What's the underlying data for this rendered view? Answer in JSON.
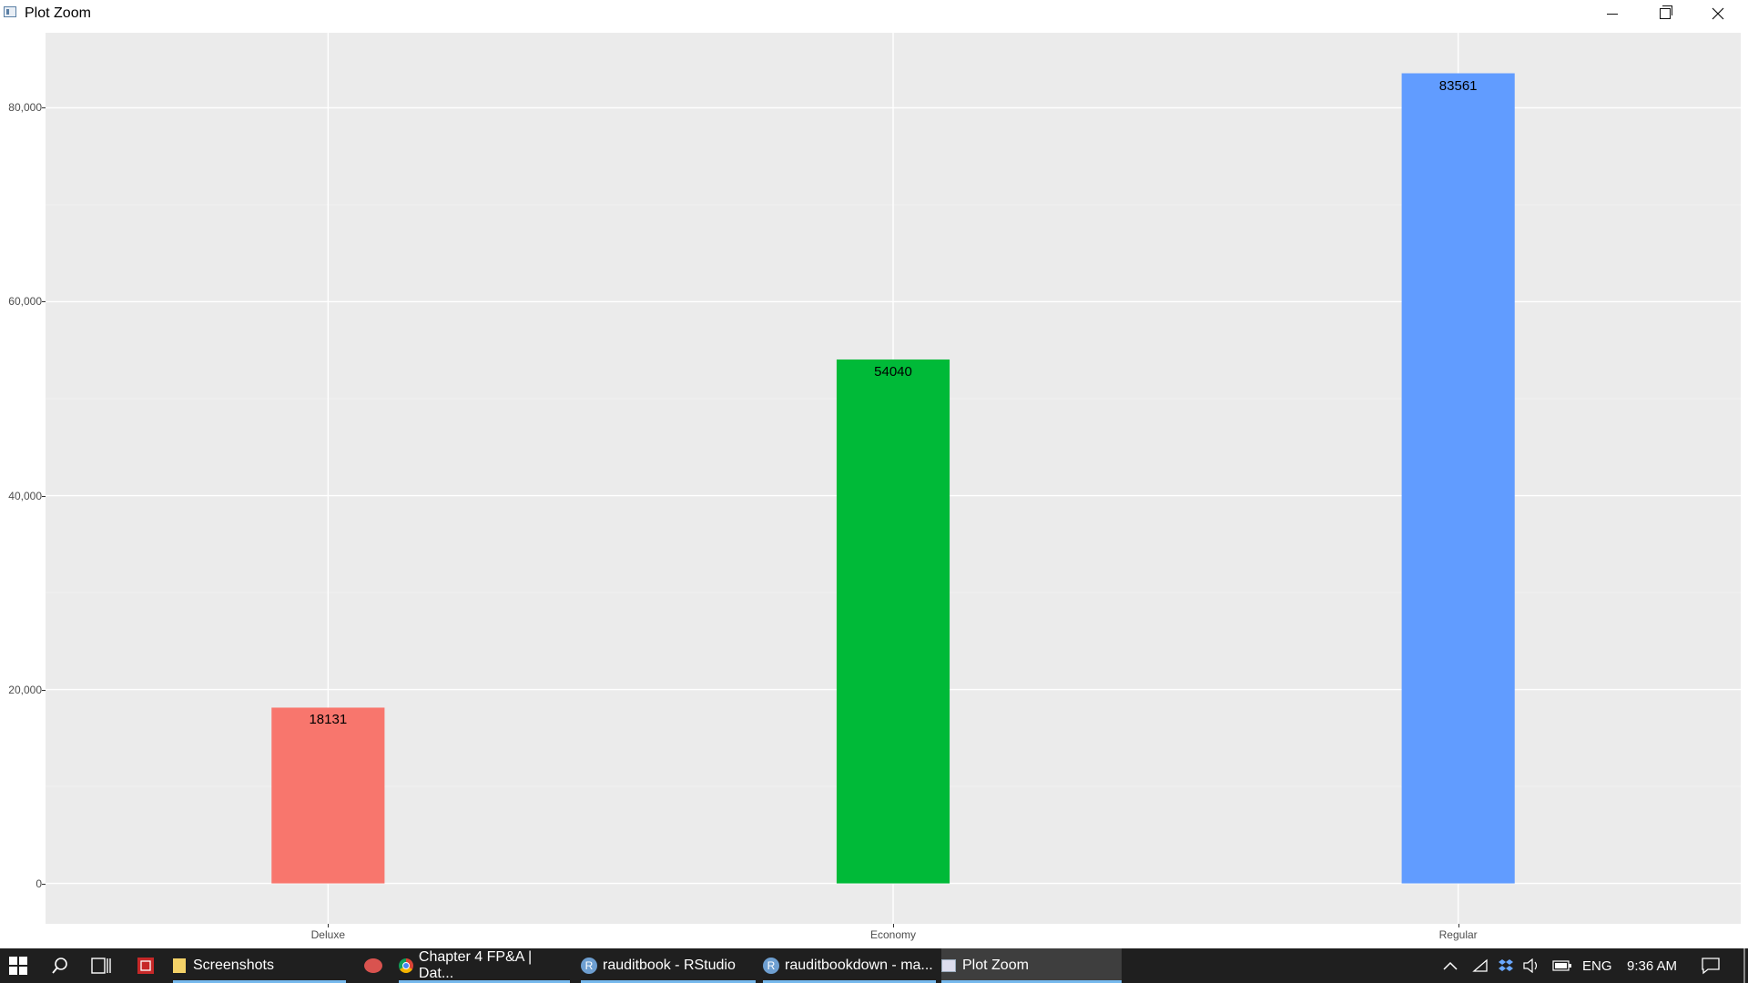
{
  "window": {
    "title": "Plot Zoom",
    "controls": [
      "minimize",
      "restore",
      "close"
    ]
  },
  "chart_data": {
    "type": "bar",
    "categories": [
      "Deluxe",
      "Economy",
      "Regular"
    ],
    "values": [
      18131,
      54040,
      83561
    ],
    "colors": [
      "#F8766D",
      "#00BA38",
      "#619CFF"
    ],
    "data_labels": [
      "18131",
      "54040",
      "83561"
    ],
    "yticks": [
      0,
      20000,
      40000,
      60000,
      80000
    ],
    "ytick_labels": [
      "0",
      "20,000",
      "40,000",
      "60,000",
      "80,000"
    ],
    "ylim": [
      -4170,
      87740
    ],
    "grid": true,
    "title": "",
    "xlabel": "",
    "ylabel": ""
  },
  "taskbar": {
    "items": [
      {
        "label": "Screenshots",
        "icon": "folder-icon"
      },
      {
        "label": "",
        "icon": "paint-icon"
      },
      {
        "label": "Chapter 4 FP&A | Dat...",
        "icon": "chrome-icon"
      },
      {
        "label": "rauditbook - RStudio",
        "icon": "r-icon"
      },
      {
        "label": "rauditbookdown - ma...",
        "icon": "r-icon"
      },
      {
        "label": "Plot Zoom",
        "icon": "plot-window-icon"
      }
    ],
    "r_glyph": "R",
    "tray": {
      "language": "ENG",
      "time": "9:36 AM"
    }
  }
}
